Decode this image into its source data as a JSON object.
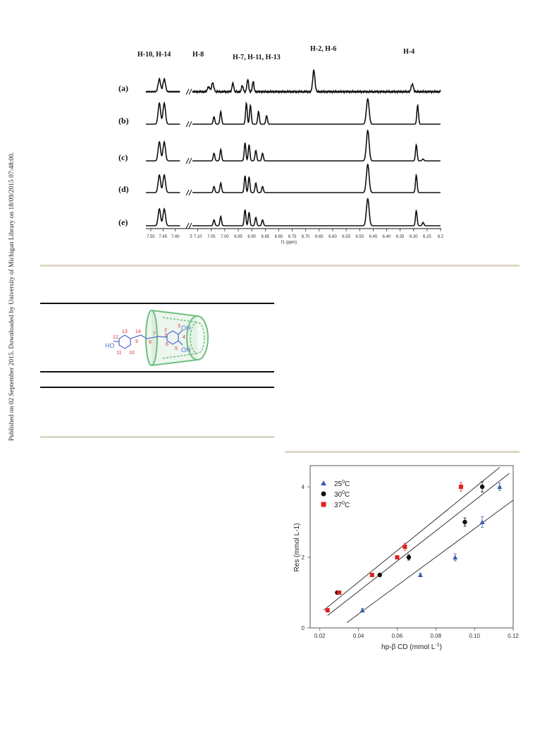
{
  "side_note": "Published on 02 September 2015. Downloaded by University of Michigan Library on 18/09/2015 07:48:00.",
  "nmr": {
    "peak_groups": [
      "H-10, H-14",
      "H-8",
      "H-7, H-11, H-13",
      "H-2, H-6",
      "H-4"
    ],
    "traces": [
      "(a)",
      "(b)",
      "(c)",
      "(d)",
      "(e)"
    ],
    "ticks_left": [
      "7.50",
      "7.45",
      "7.40"
    ],
    "ticks_right": [
      "7.10",
      "7.05",
      "7.00",
      "6.95",
      "6.90",
      "6.85",
      "6.80",
      "6.75",
      "6.70",
      "6.65",
      "6.60",
      "6.55",
      "6.50",
      "6.45",
      "6.40",
      "6.35",
      "6.30",
      "6.25",
      "6.2"
    ],
    "break_tick": "5",
    "xlabel": "f1 (ppm)"
  },
  "structure": {
    "atom_labels": [
      "13",
      "14",
      "12",
      "9",
      "11",
      "10",
      "7",
      "8",
      "1",
      "2",
      "3",
      "4",
      "5",
      "6"
    ],
    "groups": [
      "HO",
      "OH",
      "OH"
    ]
  },
  "chart_data": {
    "type": "scatter",
    "xlabel": "hp-β CD (mmol L",
    "xlabel_sup": "-1",
    "xlabel_close": ")",
    "ylabel": "Res (mmol L-1)",
    "xlim": [
      0.015,
      0.12
    ],
    "ylim": [
      0,
      4.6
    ],
    "xticks": [
      "0.02",
      "0.04",
      "0.06",
      "0.08",
      "0.10",
      "0.12"
    ],
    "xtick_values": [
      0.02,
      0.04,
      0.06,
      0.08,
      0.1,
      0.12
    ],
    "yticks": [
      "0",
      "2",
      "4"
    ],
    "ytick_values": [
      0,
      2,
      4
    ],
    "legend_position": "top-left",
    "series": [
      {
        "name": "25",
        "sup": "0",
        "unit": "C",
        "marker": "triangle",
        "color": "#3a5fb0",
        "x": [
          0.042,
          0.072,
          0.09,
          0.104,
          0.113
        ],
        "y": [
          0.5,
          1.5,
          2.0,
          3.0,
          4.0
        ],
        "err": [
          0.05,
          0.05,
          0.1,
          0.15,
          0.1
        ]
      },
      {
        "name": "30",
        "sup": "0",
        "unit": "C",
        "marker": "circle",
        "color": "#111111",
        "x": [
          0.029,
          0.051,
          0.066,
          0.095,
          0.104
        ],
        "y": [
          1.0,
          1.5,
          2.0,
          3.0,
          4.0
        ],
        "err": [
          0.03,
          0.05,
          0.08,
          0.12,
          0.15
        ]
      },
      {
        "name": "37",
        "sup": "0",
        "unit": "C",
        "marker": "square",
        "color": "#e02020",
        "x": [
          0.024,
          0.03,
          0.047,
          0.06,
          0.064,
          0.093
        ],
        "y": [
          0.5,
          1.0,
          1.5,
          2.0,
          2.3,
          4.0
        ],
        "err": [
          0.03,
          0.03,
          0.05,
          0.05,
          0.1,
          0.12
        ]
      }
    ],
    "fit_lines": [
      {
        "x": [
          0.034,
          0.12
        ],
        "y": [
          0.15,
          3.62
        ]
      },
      {
        "x": [
          0.024,
          0.118
        ],
        "y": [
          0.35,
          4.38
        ]
      },
      {
        "x": [
          0.022,
          0.113
        ],
        "y": [
          0.5,
          4.55
        ]
      }
    ]
  }
}
